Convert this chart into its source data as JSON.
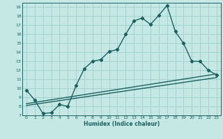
{
  "xlabel": "Humidex (Indice chaleur)",
  "xlim": [
    -0.5,
    23.5
  ],
  "ylim": [
    7,
    19.5
  ],
  "yticks": [
    7,
    8,
    9,
    10,
    11,
    12,
    13,
    14,
    15,
    16,
    17,
    18,
    19
  ],
  "xticks": [
    0,
    1,
    2,
    3,
    4,
    5,
    6,
    7,
    8,
    9,
    10,
    11,
    12,
    13,
    14,
    15,
    16,
    17,
    18,
    19,
    20,
    21,
    22,
    23
  ],
  "bg_color": "#c5e8e5",
  "grid_color": "#9ecece",
  "line_color": "#1a6060",
  "main_x": [
    0,
    1,
    2,
    3,
    4,
    5,
    6,
    7,
    8,
    9,
    10,
    11,
    12,
    13,
    14,
    15,
    16,
    17,
    18,
    19,
    20,
    21,
    22,
    23
  ],
  "main_y": [
    9.8,
    8.7,
    7.2,
    7.3,
    8.2,
    8.0,
    10.3,
    12.2,
    13.0,
    13.2,
    14.1,
    14.3,
    16.0,
    17.5,
    17.8,
    17.1,
    18.1,
    19.2,
    16.3,
    15.0,
    13.0,
    13.0,
    12.0,
    11.5
  ],
  "line2_x": [
    0,
    23
  ],
  "line2_y": [
    8.1,
    11.2
  ],
  "line3_x": [
    0,
    23
  ],
  "line3_y": [
    8.3,
    11.6
  ],
  "marker": "D",
  "marker_size": 2.2,
  "line_width": 1.0
}
